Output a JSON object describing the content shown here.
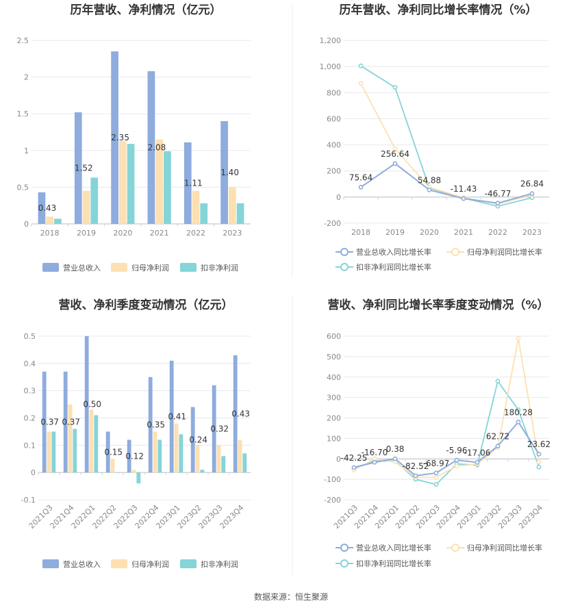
{
  "source": "数据来源：恒生聚源",
  "colors": {
    "revenue": "#8eacdd",
    "net_profit": "#fde0b1",
    "deducted_profit": "#85d4d8",
    "grid": "#e5e8ef",
    "axis": "#cfd3da"
  },
  "chart_data": [
    {
      "id": "annual-bar",
      "type": "bar",
      "title": "历年营收、净利情况（亿元）",
      "categories": [
        "2018",
        "2019",
        "2020",
        "2021",
        "2022",
        "2023"
      ],
      "series": [
        {
          "name": "营业总收入",
          "values": [
            0.43,
            1.52,
            2.35,
            2.08,
            1.11,
            1.4
          ]
        },
        {
          "name": "归母净利润",
          "values": [
            0.1,
            0.45,
            1.13,
            1.15,
            0.45,
            0.5
          ]
        },
        {
          "name": "扣非净利润",
          "values": [
            0.07,
            0.63,
            1.09,
            0.99,
            0.28,
            0.28
          ]
        }
      ],
      "data_labels": [
        "0.43",
        "1.52",
        "2.35",
        "2.08",
        "1.11",
        "1.40"
      ],
      "y_ticks": [
        "0",
        "0.5",
        "1",
        "1.5",
        "2",
        "2.5"
      ],
      "ylim": [
        0,
        2.5
      ],
      "legend": "bottom"
    },
    {
      "id": "annual-line",
      "type": "line",
      "title": "历年营收、净利同比增长率情况（%）",
      "categories": [
        "2018",
        "2019",
        "2020",
        "2021",
        "2022",
        "2023"
      ],
      "series": [
        {
          "name": "营业总收入同比增长率",
          "values": [
            75.64,
            256.64,
            54.88,
            -11.43,
            -46.77,
            26.84
          ]
        },
        {
          "name": "归母净利润同比增长率",
          "values": [
            870,
            370,
            75,
            -5,
            -52,
            15
          ]
        },
        {
          "name": "扣非净利润同比增长率",
          "values": [
            1005,
            840,
            70,
            -8,
            -70,
            -5
          ]
        }
      ],
      "data_labels": [
        "75.64",
        "256.64",
        "54.88",
        "-11.43",
        "-46.77",
        "26.84"
      ],
      "y_ticks": [
        "-200",
        "0",
        "200",
        "400",
        "600",
        "800",
        "1,000",
        "1,200"
      ],
      "ylim": [
        -200,
        1200
      ],
      "legend": "bottom"
    },
    {
      "id": "quarter-bar",
      "type": "bar",
      "title": "营收、净利季度变动情况（亿元）",
      "categories": [
        "2021Q3",
        "2021Q4",
        "2022Q1",
        "2022Q2",
        "2022Q3",
        "2022Q4",
        "2023Q1",
        "2023Q2",
        "2023Q3",
        "2023Q4"
      ],
      "series": [
        {
          "name": "营业总收入",
          "values": [
            0.37,
            0.37,
            0.5,
            0.15,
            0.12,
            0.35,
            0.41,
            0.24,
            0.32,
            0.43
          ]
        },
        {
          "name": "归母净利润",
          "values": [
            0.15,
            0.25,
            0.23,
            0.05,
            0.01,
            0.15,
            0.18,
            0.1,
            0.1,
            0.12
          ]
        },
        {
          "name": "扣非净利润",
          "values": [
            0.15,
            0.16,
            0.21,
            0.0,
            -0.04,
            0.12,
            0.14,
            0.01,
            0.06,
            0.07
          ]
        }
      ],
      "data_labels": [
        "0.37",
        "0.37",
        "0.50",
        "0.15",
        "0.12",
        "0.35",
        "0.41",
        "0.24",
        "0.32",
        "0.43"
      ],
      "y_ticks": [
        "-0.1",
        "0",
        "0.1",
        "0.2",
        "0.3",
        "0.4",
        "0.5"
      ],
      "ylim": [
        -0.1,
        0.5
      ],
      "legend": "bottom"
    },
    {
      "id": "quarter-line",
      "type": "line",
      "title": "营收、净利同比增长率季度变动情况（%）",
      "categories": [
        "2021Q3",
        "2021Q4",
        "2022Q1",
        "2022Q2",
        "2022Q3",
        "2022Q4",
        "2023Q1",
        "2023Q2",
        "2023Q3",
        "2023Q4"
      ],
      "series": [
        {
          "name": "营业总收入同比增长率",
          "values": [
            -42.25,
            -16.7,
            0.38,
            -82.52,
            -68.97,
            -5.96,
            -17.06,
            62.72,
            180.28,
            23.62
          ]
        },
        {
          "name": "归母净利润同比增长率",
          "values": [
            -55,
            0,
            -15,
            -90,
            -90,
            -35,
            -25,
            55,
            590,
            -15
          ]
        },
        {
          "name": "扣非净利润同比增长率",
          "values": [
            -45,
            -10,
            -10,
            -100,
            -125,
            -25,
            -30,
            380,
            240,
            -40
          ]
        }
      ],
      "data_labels": [
        "-42.25",
        "-16.70",
        "0.38",
        "-82.52",
        "-68.97",
        "-5.96",
        "-17.06",
        "62.72",
        "180.28",
        "23.62"
      ],
      "y_ticks": [
        "-200",
        "-100",
        "0",
        "100",
        "200",
        "300",
        "400",
        "500",
        "600"
      ],
      "ylim": [
        -200,
        600
      ],
      "legend": "bottom"
    }
  ]
}
